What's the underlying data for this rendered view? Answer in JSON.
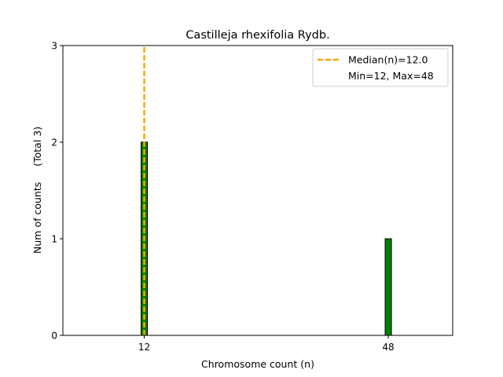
{
  "chart_data": {
    "type": "bar",
    "title": "Castilleja rhexifolia Rydb.",
    "xlabel": "Chromosome count (n)",
    "ylabel": "Num of counts     (Total 3)",
    "x_ticks": [
      12,
      48
    ],
    "y_ticks": [
      0,
      1,
      2,
      3
    ],
    "xlim": [
      0,
      57.5
    ],
    "ylim": [
      0,
      3
    ],
    "bars": [
      {
        "x": 12,
        "value": 2
      },
      {
        "x": 48,
        "value": 1
      }
    ],
    "bar_color": "#008000",
    "bar_edge_color": "#000000",
    "median": 12.0,
    "median_color": "#FFA500",
    "legend": {
      "position": "top-right",
      "median_label": "Median(n)=12.0",
      "range_label": "Min=12, Max=48"
    }
  }
}
